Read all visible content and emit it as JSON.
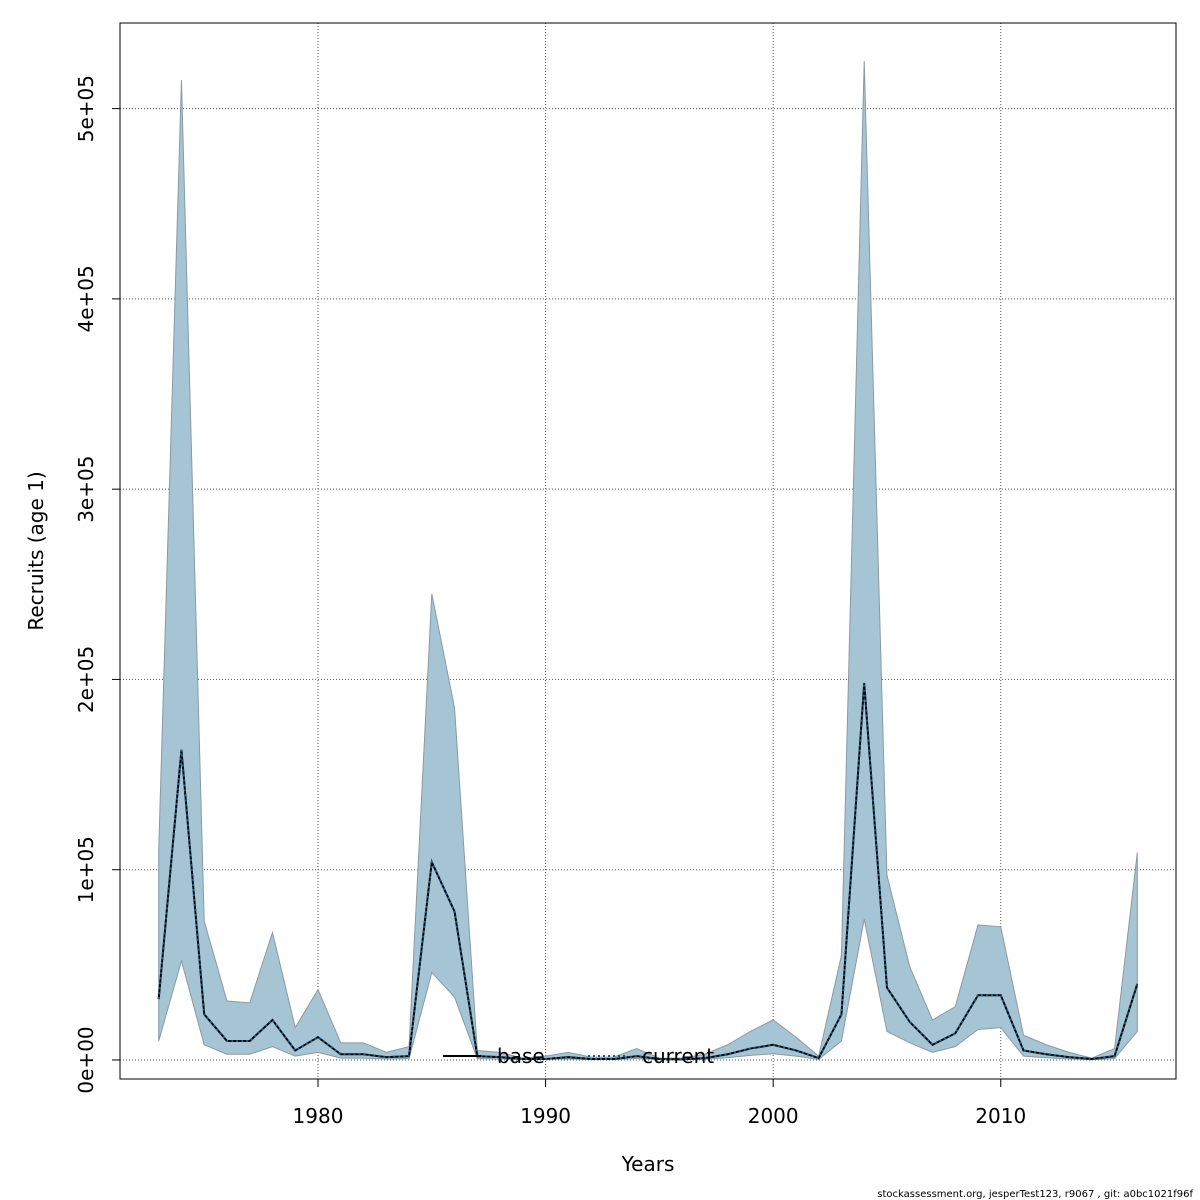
{
  "chart_data": {
    "type": "area",
    "xlabel": "Years",
    "ylabel": "Recruits (age 1)",
    "xlim": [
      1971.3,
      2017.7
    ],
    "ylim": [
      -10000,
      545000
    ],
    "x_ticks": [
      1980,
      1990,
      2000,
      2010
    ],
    "x_tick_labels": [
      "1980",
      "1990",
      "2000",
      "2010"
    ],
    "y_ticks": [
      0,
      100000,
      200000,
      300000,
      400000,
      500000
    ],
    "y_tick_labels": [
      "0e+00",
      "1e+05",
      "2e+05",
      "3e+05",
      "4e+05",
      "5e+05"
    ],
    "grid": true,
    "legend_position": "bottom-center",
    "x": [
      1973,
      1974,
      1975,
      1976,
      1977,
      1978,
      1979,
      1980,
      1981,
      1982,
      1983,
      1984,
      1985,
      1986,
      1987,
      1988,
      1989,
      1990,
      1991,
      1992,
      1993,
      1994,
      1995,
      1996,
      1997,
      1998,
      1999,
      2000,
      2001,
      2002,
      2003,
      2004,
      2005,
      2006,
      2007,
      2008,
      2009,
      2010,
      2011,
      2012,
      2013,
      2014,
      2015,
      2016
    ],
    "series": [
      {
        "name": "base",
        "values": [
          32000,
          163000,
          24000,
          10000,
          10000,
          21000,
          5000,
          12000,
          3000,
          3000,
          1500,
          2000,
          104000,
          78000,
          2000,
          1500,
          500,
          500,
          1500,
          500,
          500,
          2000,
          500,
          300,
          1000,
          3000,
          6000,
          8000,
          5000,
          1000,
          24000,
          198000,
          38000,
          20000,
          8000,
          14000,
          34000,
          34000,
          5000,
          3000,
          1500,
          500,
          2000,
          40000
        ]
      },
      {
        "name": "current",
        "values": [
          32000,
          163000,
          24000,
          10000,
          10000,
          21000,
          5000,
          12000,
          3000,
          3000,
          1500,
          2000,
          104000,
          78000,
          2000,
          1500,
          500,
          500,
          1500,
          500,
          500,
          2000,
          500,
          300,
          1000,
          3000,
          6000,
          8000,
          5000,
          1000,
          24000,
          198000,
          38000,
          20000,
          8000,
          14000,
          34000,
          34000,
          5000,
          3000,
          1500,
          500,
          2000,
          40000
        ]
      }
    ],
    "confidence_band": {
      "upper": [
        110000,
        515000,
        73000,
        31000,
        30000,
        67000,
        17000,
        37000,
        9000,
        9000,
        4000,
        7000,
        245000,
        185000,
        5000,
        4000,
        1000,
        2000,
        4000,
        1500,
        1500,
        6000,
        1000,
        1000,
        3000,
        8000,
        15000,
        21000,
        12000,
        2000,
        55000,
        525000,
        97000,
        49000,
        21000,
        28000,
        71000,
        70000,
        13000,
        8000,
        4000,
        1000,
        6000,
        109000
      ],
      "lower": [
        10000,
        52000,
        8000,
        3000,
        3000,
        7000,
        2000,
        4000,
        1000,
        1000,
        500,
        700,
        46000,
        33000,
        700,
        500,
        200,
        300,
        600,
        200,
        200,
        800,
        200,
        100,
        400,
        1200,
        2400,
        3300,
        2000,
        300,
        10000,
        74000,
        15000,
        9000,
        4000,
        7000,
        16000,
        17000,
        2000,
        1200,
        600,
        150,
        800,
        15000
      ],
      "color": "#a5c4d4",
      "edge_color": "#8a9aa2"
    },
    "colors": {
      "base": "#000000",
      "current": "#1a5e8a"
    },
    "line_styles": {
      "base": "solid",
      "current": "dotted"
    }
  },
  "footer": {
    "note": "stockassessment.org, jesperTest123, r9067 , git: a0bc1021f96f"
  }
}
